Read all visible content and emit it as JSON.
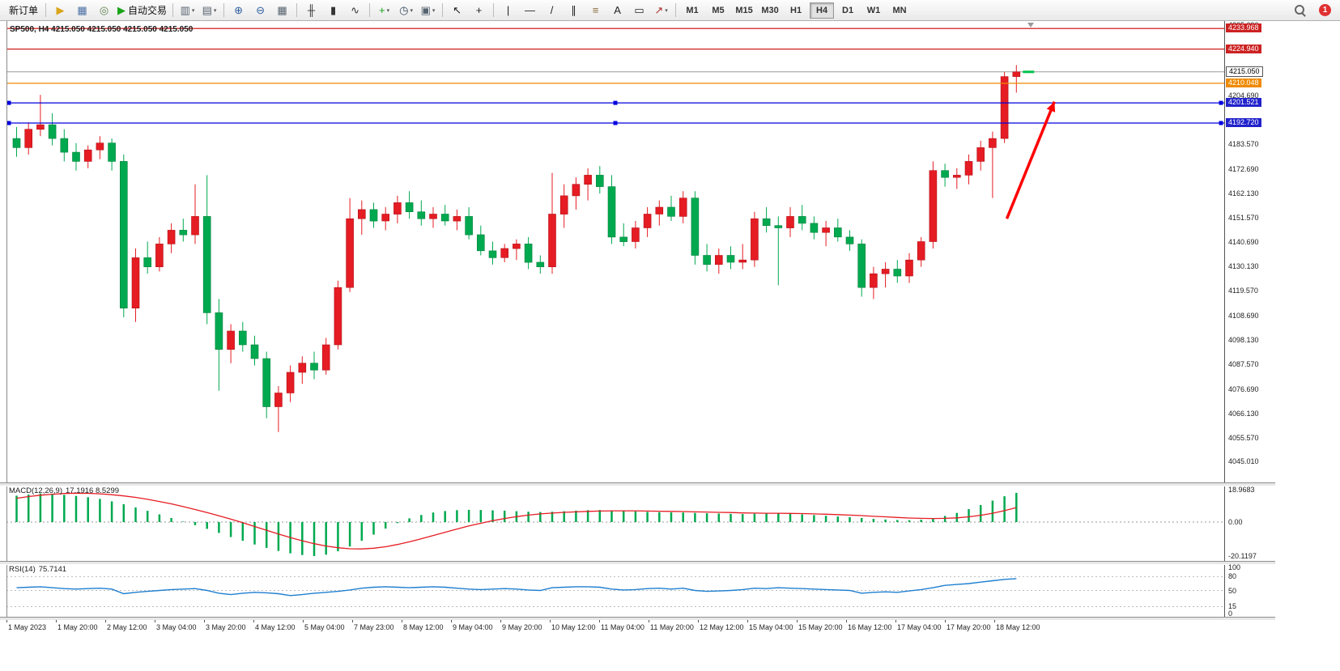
{
  "toolbar": {
    "badge": "1",
    "active_timeframe": "H4",
    "timeframes": [
      "M1",
      "M5",
      "M15",
      "M30",
      "H1",
      "H4",
      "D1",
      "W1",
      "MN"
    ],
    "items": [
      {
        "t": "btn",
        "name": "new-order-button",
        "label": "新订单"
      },
      {
        "t": "sep"
      },
      {
        "t": "icon",
        "name": "alerts-megaphone-icon",
        "g": "▶",
        "c": "#d9a41b"
      },
      {
        "t": "icon",
        "name": "market-watch-icon",
        "g": "▦",
        "c": "#4a6fa5"
      },
      {
        "t": "icon",
        "name": "navigator-icon",
        "g": "◎",
        "c": "#5b7f4f"
      },
      {
        "t": "btnicon",
        "name": "auto-trading-button",
        "g": "▶",
        "c": "#19a319",
        "label": "自动交易"
      },
      {
        "t": "sep"
      },
      {
        "t": "icon",
        "name": "new-chart-icon",
        "g": "▥",
        "c": "#55616e",
        "caret": true
      },
      {
        "t": "icon",
        "name": "profiles-icon",
        "g": "▤",
        "c": "#55616e",
        "caret": true
      },
      {
        "t": "sep"
      },
      {
        "t": "icon",
        "name": "zoom-in-icon",
        "g": "⊕",
        "c": "#2f5fa0"
      },
      {
        "t": "icon",
        "name": "zoom-out-icon",
        "g": "⊖",
        "c": "#2f5fa0"
      },
      {
        "t": "icon",
        "name": "tile-windows-icon",
        "g": "▦",
        "c": "#55616e"
      },
      {
        "t": "sep"
      },
      {
        "t": "icon",
        "name": "bar-chart-icon",
        "g": "╫",
        "c": "#333333"
      },
      {
        "t": "icon",
        "name": "candlestick-chart-icon",
        "g": "▮",
        "c": "#333333"
      },
      {
        "t": "icon",
        "name": "line-chart-icon",
        "g": "∿",
        "c": "#333333"
      },
      {
        "t": "sep"
      },
      {
        "t": "icon",
        "name": "indicators-icon",
        "g": "+",
        "c": "#19a319",
        "caret": true
      },
      {
        "t": "icon",
        "name": "periods-icon",
        "g": "◷",
        "c": "#37475d",
        "caret": true
      },
      {
        "t": "icon",
        "name": "templates-icon",
        "g": "▣",
        "c": "#55616e",
        "caret": true
      },
      {
        "t": "sep"
      },
      {
        "t": "icon",
        "name": "cursor-icon",
        "g": "↖",
        "c": "#222222"
      },
      {
        "t": "icon",
        "name": "crosshair-icon",
        "g": "+",
        "c": "#222222"
      },
      {
        "t": "sep"
      },
      {
        "t": "icon",
        "name": "vertical-line-icon",
        "g": "|",
        "c": "#222222"
      },
      {
        "t": "icon",
        "name": "horizontal-line-icon",
        "g": "—",
        "c": "#222222"
      },
      {
        "t": "icon",
        "name": "trendline-icon",
        "g": "/",
        "c": "#222222"
      },
      {
        "t": "icon",
        "name": "equidistant-channel-icon",
        "g": "∥",
        "c": "#222222"
      },
      {
        "t": "icon",
        "name": "fibonacci-icon",
        "g": "≡",
        "c": "#8a6d3b"
      },
      {
        "t": "icon",
        "name": "text-icon",
        "g": "A",
        "c": "#222222"
      },
      {
        "t": "icon",
        "name": "label-icon",
        "g": "▭",
        "c": "#222222"
      },
      {
        "t": "icon",
        "name": "arrows-icon",
        "g": "↗",
        "c": "#b03030",
        "caret": true
      },
      {
        "t": "sep"
      }
    ]
  },
  "chart": {
    "title": "SP500, H4  4215.050 4215.050 4215.050 4215.050",
    "bid": 4215.05,
    "hlines": [
      {
        "price": 4233.968,
        "color": "#cc0000",
        "handles": false
      },
      {
        "price": 4224.94,
        "color": "#cc0000",
        "handles": false
      },
      {
        "price": 4210.048,
        "color": "#ee8a00",
        "handles": false
      },
      {
        "price": 4201.521,
        "color": "#0000dd",
        "handles": true
      },
      {
        "price": 4192.72,
        "color": "#0000dd",
        "handles": true
      }
    ],
    "price_labels": [
      {
        "text": "4233.968",
        "bg": "#cc2222",
        "fg": "#ffffff"
      },
      {
        "text": "4224.940",
        "bg": "#cc2222",
        "fg": "#ffffff"
      },
      {
        "text": "4215.050",
        "bg": "#ffffff",
        "fg": "#000000",
        "border": "#555555"
      },
      {
        "text": "4210.048",
        "bg": "#ee8a00",
        "fg": "#ffffff"
      },
      {
        "text": "4201.521",
        "bg": "#2222cc",
        "fg": "#ffffff"
      },
      {
        "text": "4192.720",
        "bg": "#2222cc",
        "fg": "#ffffff"
      }
    ],
    "arrow": {
      "i1": 83.2,
      "p1": 4151,
      "i2": 87.2,
      "p2": 4202,
      "color": "#ff0000"
    }
  },
  "indicators": {
    "macd_name": "MACD(12,26,9)",
    "macd_values": "17.1916 8.5299",
    "rsi_name": "RSI(14)",
    "rsi_value": "75.7141"
  },
  "chart_data": {
    "type": "candlestick",
    "symbol": "SP500",
    "timeframe": "H4",
    "up_color": "#e51c23",
    "down_color": "#00a94f",
    "price_range": [
      4036.0,
      4236.5
    ],
    "price_ticks": [
      "4235.690",
      "4204.690",
      "4183.570",
      "4172.690",
      "4162.130",
      "4151.570",
      "4140.690",
      "4130.130",
      "4119.570",
      "4108.690",
      "4098.130",
      "4087.570",
      "4076.690",
      "4066.130",
      "4055.570",
      "4045.010"
    ],
    "time_labels": [
      "1 May 2023",
      "1 May 20:00",
      "2 May 12:00",
      "3 May 04:00",
      "3 May 20:00",
      "4 May 12:00",
      "5 May 04:00",
      "7 May 23:00",
      "8 May 12:00",
      "9 May 04:00",
      "9 May 20:00",
      "10 May 12:00",
      "11 May 04:00",
      "11 May 20:00",
      "12 May 12:00",
      "15 May 04:00",
      "15 May 20:00",
      "16 May 12:00",
      "17 May 04:00",
      "17 May 20:00",
      "18 May 12:00"
    ],
    "ohlc": [
      [
        4186,
        4191,
        4178,
        4182
      ],
      [
        4182,
        4193,
        4179,
        4190
      ],
      [
        4190,
        4205,
        4187,
        4192
      ],
      [
        4192,
        4197,
        4183,
        4186
      ],
      [
        4186,
        4190,
        4176,
        4180
      ],
      [
        4180,
        4184,
        4172,
        4176
      ],
      [
        4176,
        4183,
        4173,
        4181
      ],
      [
        4181,
        4187,
        4177,
        4184
      ],
      [
        4184,
        4186,
        4172,
        4176
      ],
      [
        4176,
        4179,
        4108,
        4112
      ],
      [
        4112,
        4138,
        4106,
        4134
      ],
      [
        4134,
        4141,
        4127,
        4130
      ],
      [
        4130,
        4143,
        4128,
        4140
      ],
      [
        4140,
        4149,
        4136,
        4146
      ],
      [
        4146,
        4151,
        4141,
        4144
      ],
      [
        4144,
        4166,
        4140,
        4152
      ],
      [
        4152,
        4170,
        4105,
        4110
      ],
      [
        4110,
        4116,
        4076,
        4094
      ],
      [
        4094,
        4105,
        4088,
        4102
      ],
      [
        4102,
        4106,
        4093,
        4096
      ],
      [
        4096,
        4100,
        4087,
        4090
      ],
      [
        4090,
        4093,
        4064,
        4069
      ],
      [
        4069,
        4078,
        4058,
        4075
      ],
      [
        4075,
        4087,
        4071,
        4084
      ],
      [
        4084,
        4091,
        4079,
        4088
      ],
      [
        4088,
        4093,
        4081,
        4085
      ],
      [
        4085,
        4099,
        4083,
        4096
      ],
      [
        4096,
        4124,
        4094,
        4121
      ],
      [
        4121,
        4160,
        4119,
        4151
      ],
      [
        4151,
        4159,
        4144,
        4155
      ],
      [
        4155,
        4158,
        4147,
        4150
      ],
      [
        4150,
        4156,
        4146,
        4153
      ],
      [
        4153,
        4161,
        4149,
        4158
      ],
      [
        4158,
        4163,
        4151,
        4154
      ],
      [
        4154,
        4159,
        4148,
        4151
      ],
      [
        4151,
        4156,
        4147,
        4153
      ],
      [
        4153,
        4157,
        4148,
        4150
      ],
      [
        4150,
        4155,
        4146,
        4152
      ],
      [
        4152,
        4156,
        4142,
        4144
      ],
      [
        4144,
        4148,
        4135,
        4137
      ],
      [
        4137,
        4141,
        4131,
        4134
      ],
      [
        4134,
        4140,
        4132,
        4138
      ],
      [
        4138,
        4142,
        4133,
        4140
      ],
      [
        4140,
        4143,
        4129,
        4132
      ],
      [
        4132,
        4135,
        4127,
        4130
      ],
      [
        4130,
        4171,
        4127,
        4153
      ],
      [
        4153,
        4166,
        4147,
        4161
      ],
      [
        4161,
        4169,
        4155,
        4166
      ],
      [
        4166,
        4173,
        4159,
        4170
      ],
      [
        4170,
        4174,
        4162,
        4165
      ],
      [
        4165,
        4170,
        4140,
        4143
      ],
      [
        4143,
        4149,
        4139,
        4141
      ],
      [
        4141,
        4150,
        4138,
        4147
      ],
      [
        4147,
        4156,
        4143,
        4153
      ],
      [
        4153,
        4159,
        4148,
        4156
      ],
      [
        4156,
        4161,
        4150,
        4152
      ],
      [
        4152,
        4163,
        4149,
        4160
      ],
      [
        4160,
        4163,
        4131,
        4135
      ],
      [
        4135,
        4140,
        4128,
        4131
      ],
      [
        4131,
        4138,
        4127,
        4135
      ],
      [
        4135,
        4139,
        4129,
        4132
      ],
      [
        4132,
        4140,
        4129,
        4133
      ],
      [
        4133,
        4154,
        4130,
        4151
      ],
      [
        4151,
        4156,
        4145,
        4148
      ],
      [
        4148,
        4152,
        4122,
        4147
      ],
      [
        4147,
        4156,
        4143,
        4152
      ],
      [
        4152,
        4157,
        4146,
        4149
      ],
      [
        4149,
        4152,
        4142,
        4145
      ],
      [
        4145,
        4150,
        4139,
        4147
      ],
      [
        4147,
        4151,
        4141,
        4143
      ],
      [
        4143,
        4146,
        4137,
        4140
      ],
      [
        4140,
        4142,
        4117,
        4121
      ],
      [
        4121,
        4130,
        4116,
        4127
      ],
      [
        4127,
        4132,
        4121,
        4129
      ],
      [
        4129,
        4133,
        4123,
        4126
      ],
      [
        4126,
        4136,
        4123,
        4133
      ],
      [
        4133,
        4143,
        4130,
        4141
      ],
      [
        4141,
        4176,
        4138,
        4172
      ],
      [
        4172,
        4175,
        4165,
        4169
      ],
      [
        4169,
        4173,
        4164,
        4170
      ],
      [
        4170,
        4179,
        4166,
        4176
      ],
      [
        4176,
        4185,
        4172,
        4182
      ],
      [
        4182,
        4189,
        4160,
        4186
      ],
      [
        4186,
        4215,
        4184,
        4213
      ],
      [
        4213,
        4218,
        4206,
        4215.05
      ]
    ],
    "macd": {
      "axis": [
        "18.9683",
        "0.00",
        "-20.1197"
      ],
      "histogram": [
        15.5,
        16.2,
        16.8,
        16.5,
        16.0,
        15.4,
        14.6,
        13.6,
        12.2,
        10.5,
        8.6,
        6.6,
        4.5,
        2.4,
        0.3,
        -1.8,
        -4.0,
        -6.4,
        -8.8,
        -11.0,
        -13.2,
        -15.2,
        -17.0,
        -18.4,
        -19.4,
        -20.0,
        -19.2,
        -17.2,
        -14.4,
        -11.0,
        -7.4,
        -3.8,
        -0.6,
        2.2,
        4.2,
        5.6,
        6.5,
        7.0,
        7.2,
        7.1,
        6.9,
        6.7,
        6.4,
        6.1,
        5.9,
        6.1,
        6.4,
        6.7,
        7.0,
        7.1,
        6.9,
        6.6,
        6.3,
        6.0,
        5.8,
        5.7,
        5.6,
        5.4,
        5.2,
        5.0,
        4.8,
        4.7,
        4.9,
        5.1,
        5.0,
        4.8,
        4.5,
        4.1,
        3.7,
        3.3,
        2.9,
        2.4,
        1.9,
        1.5,
        1.2,
        1.1,
        1.4,
        2.2,
        3.6,
        5.4,
        7.6,
        10.0,
        12.6,
        15.2,
        17.2
      ],
      "signal": [
        14.0,
        15.0,
        15.8,
        16.4,
        16.8,
        17.0,
        16.9,
        16.6,
        16.1,
        15.4,
        14.5,
        13.4,
        12.1,
        10.7,
        9.1,
        7.4,
        5.6,
        3.7,
        1.7,
        -0.4,
        -2.6,
        -4.8,
        -7.0,
        -9.1,
        -11.0,
        -12.7,
        -14.1,
        -15.1,
        -15.7,
        -15.8,
        -15.4,
        -14.5,
        -13.2,
        -11.6,
        -9.8,
        -7.9,
        -6.0,
        -4.1,
        -2.3,
        -0.7,
        0.8,
        2.1,
        3.2,
        4.1,
        4.8,
        5.3,
        5.7,
        6.0,
        6.3,
        6.5,
        6.6,
        6.6,
        6.6,
        6.5,
        6.4,
        6.3,
        6.2,
        6.0,
        5.9,
        5.7,
        5.6,
        5.4,
        5.3,
        5.2,
        5.2,
        5.1,
        5.0,
        4.8,
        4.6,
        4.4,
        4.1,
        3.8,
        3.4,
        3.1,
        2.7,
        2.4,
        2.2,
        2.1,
        2.2,
        2.5,
        3.1,
        4.0,
        5.2,
        6.7,
        8.5
      ]
    },
    "rsi": {
      "axis": [
        "100",
        "80",
        "50",
        "15",
        "0"
      ],
      "levels": [
        80,
        50,
        15
      ],
      "values": [
        56,
        57,
        58,
        56,
        54,
        53,
        54,
        55,
        53,
        43,
        46,
        48,
        50,
        52,
        53,
        54,
        50,
        44,
        41,
        44,
        46,
        45,
        43,
        39,
        41,
        44,
        46,
        48,
        51,
        55,
        57,
        58,
        57,
        56,
        57,
        58,
        57,
        55,
        53,
        52,
        53,
        54,
        53,
        51,
        50,
        56,
        57,
        58,
        58,
        57,
        53,
        51,
        52,
        54,
        55,
        53,
        55,
        50,
        48,
        49,
        50,
        52,
        55,
        54,
        56,
        55,
        54,
        53,
        52,
        51,
        50,
        44,
        46,
        47,
        46,
        49,
        52,
        56,
        61,
        63,
        65,
        68,
        71,
        74,
        75.7
      ]
    }
  }
}
